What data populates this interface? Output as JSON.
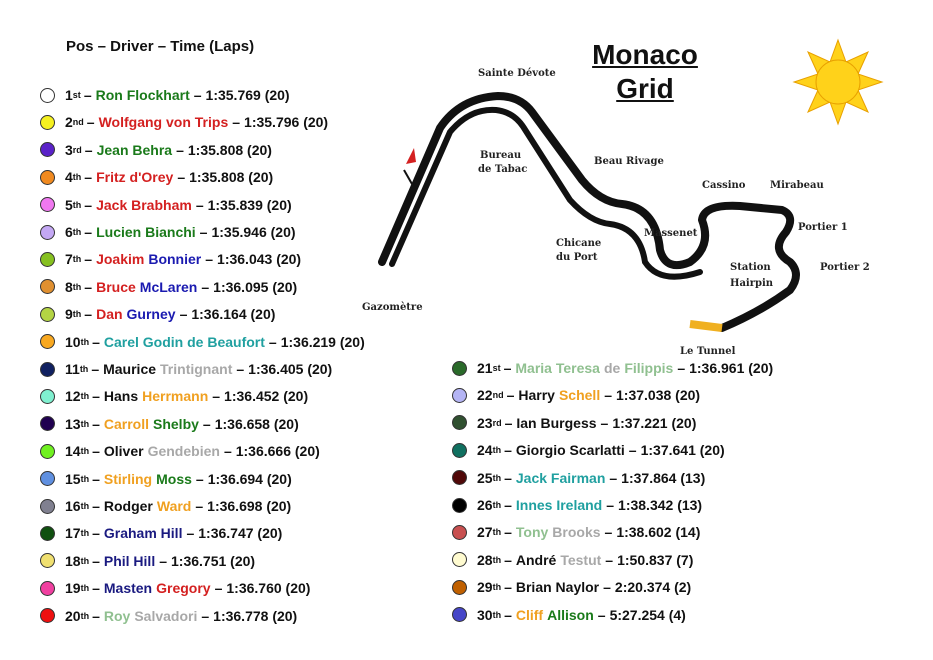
{
  "header": "Pos – Driver – Time (Laps)",
  "title": [
    "Monaco",
    "Grid"
  ],
  "separator": "–",
  "track_labels": [
    "Sainte Dévote",
    "Bureau",
    "de Tabac",
    "Beau Rivage",
    "Cassino",
    "Mirabeau",
    "Portier 1",
    "Portier 2",
    "Station",
    "Hairpin",
    "Massenet",
    "Chicane",
    "du Port",
    "Gazomètre",
    "Le Tunnel"
  ],
  "drivers": [
    {
      "pos": "1",
      "suffix": "st",
      "marker": "#ffffff",
      "name": [
        {
          "text": "Ron Flockhart",
          "color": "#1a7a1a"
        }
      ],
      "time": "1:35.769 (20)"
    },
    {
      "pos": "2",
      "suffix": "nd",
      "marker": "#f5f020",
      "name": [
        {
          "text": "Wolfgang von Trips",
          "color": "#d42020"
        }
      ],
      "time": "1:35.796 (20)"
    },
    {
      "pos": "3",
      "suffix": "rd",
      "marker": "#5a22c8",
      "name": [
        {
          "text": "Jean Behra",
          "color": "#1a7a1a"
        }
      ],
      "time": "1:35.808 (20)"
    },
    {
      "pos": "4",
      "suffix": "th",
      "marker": "#f08a20",
      "name": [
        {
          "text": "Fritz d'Orey",
          "color": "#d42020"
        }
      ],
      "time": "1:35.808 (20)"
    },
    {
      "pos": "5",
      "suffix": "th",
      "marker": "#f078f0",
      "name": [
        {
          "text": "Jack Brabham",
          "color": "#d42020"
        }
      ],
      "time": "1:35.839 (20)"
    },
    {
      "pos": "6",
      "suffix": "th",
      "marker": "#c4a8f4",
      "name": [
        {
          "text": "Lucien Bianchi",
          "color": "#1a7a1a"
        }
      ],
      "time": "1:35.946 (20)"
    },
    {
      "pos": "7",
      "suffix": "th",
      "marker": "#86c020",
      "name": [
        {
          "text": "Joakim",
          "color": "#d42020"
        },
        {
          "text": "Bonnier",
          "color": "#1a1ab0"
        }
      ],
      "time": "1:36.043 (20)"
    },
    {
      "pos": "8",
      "suffix": "th",
      "marker": "#e09030",
      "name": [
        {
          "text": "Bruce",
          "color": "#d42020"
        },
        {
          "text": "McLaren",
          "color": "#1a1ab0"
        }
      ],
      "time": "1:36.095 (20)"
    },
    {
      "pos": "9",
      "suffix": "th",
      "marker": "#b4d444",
      "name": [
        {
          "text": "Dan",
          "color": "#d42020"
        },
        {
          "text": "Gurney",
          "color": "#1a1ab0"
        }
      ],
      "time": "1:36.164 (20)"
    },
    {
      "pos": "10",
      "suffix": "th",
      "marker": "#f8a820",
      "name": [
        {
          "text": "Carel Godin de Beaufort",
          "color": "#20a0a0"
        }
      ],
      "time": "1:36.219 (20)"
    },
    {
      "pos": "11",
      "suffix": "th",
      "marker": "#102060",
      "name": [
        {
          "text": "Maurice",
          "color": "#111111"
        },
        {
          "text": "Trintignant",
          "color": "#a8a8a8"
        }
      ],
      "time": "1:36.405 (20)"
    },
    {
      "pos": "12",
      "suffix": "th",
      "marker": "#80f0d0",
      "name": [
        {
          "text": "Hans",
          "color": "#111111"
        },
        {
          "text": "Herrmann",
          "color": "#f0a020"
        }
      ],
      "time": "1:36.452 (20)"
    },
    {
      "pos": "13",
      "suffix": "th",
      "marker": "#200050",
      "name": [
        {
          "text": "Carroll",
          "color": "#f0a020"
        },
        {
          "text": "Shelby",
          "color": "#1a7a1a"
        }
      ],
      "time": "1:36.658 (20)"
    },
    {
      "pos": "14",
      "suffix": "th",
      "marker": "#70f020",
      "name": [
        {
          "text": "Oliver",
          "color": "#111111"
        },
        {
          "text": "Gendebien",
          "color": "#a8a8a8"
        }
      ],
      "time": "1:36.666 (20)"
    },
    {
      "pos": "15",
      "suffix": "th",
      "marker": "#6090e0",
      "name": [
        {
          "text": "Stirling",
          "color": "#f0a020"
        },
        {
          "text": "Moss",
          "color": "#1a7a1a"
        }
      ],
      "time": "1:36.694 (20)"
    },
    {
      "pos": "16",
      "suffix": "th",
      "marker": "#808090",
      "name": [
        {
          "text": "Rodger",
          "color": "#111111"
        },
        {
          "text": "Ward",
          "color": "#f0a020"
        }
      ],
      "time": "1:36.698 (20)"
    },
    {
      "pos": "17",
      "suffix": "th",
      "marker": "#105010",
      "name": [
        {
          "text": "Graham Hill",
          "color": "#1a1a80"
        }
      ],
      "time": "1:36.747 (20)"
    },
    {
      "pos": "18",
      "suffix": "th",
      "marker": "#f0e070",
      "name": [
        {
          "text": "Phil Hill",
          "color": "#1a1a80"
        }
      ],
      "time": "1:36.751 (20)"
    },
    {
      "pos": "19",
      "suffix": "th",
      "marker": "#f040a0",
      "name": [
        {
          "text": "Masten",
          "color": "#1a1a80"
        },
        {
          "text": "Gregory",
          "color": "#d42020"
        }
      ],
      "time": "1:36.760 (20)"
    },
    {
      "pos": "20",
      "suffix": "th",
      "marker": "#ee1010",
      "name": [
        {
          "text": "Roy",
          "color": "#90c090"
        },
        {
          "text": "Salvadori",
          "color": "#a8a8a8"
        }
      ],
      "time": "1:36.778 (20)"
    },
    {
      "pos": "21",
      "suffix": "st",
      "marker": "#2a6a2a",
      "name": [
        {
          "text": "Maria Teresa",
          "color": "#90c090"
        },
        {
          "text": "de",
          "color": "#a8a8a8"
        },
        {
          "text": "Filippis",
          "color": "#90c090"
        }
      ],
      "time": "1:36.961 (20)"
    },
    {
      "pos": "22",
      "suffix": "nd",
      "marker": "#b4b4f4",
      "name": [
        {
          "text": "Harry",
          "color": "#111111"
        },
        {
          "text": "Schell",
          "color": "#f0a020"
        }
      ],
      "time": "1:37.038 (20)"
    },
    {
      "pos": "23",
      "suffix": "rd",
      "marker": "#305030",
      "name": [
        {
          "text": "Ian Burgess",
          "color": "#111111"
        }
      ],
      "time": "1:37.221 (20)"
    },
    {
      "pos": "24",
      "suffix": "th",
      "marker": "#107060",
      "name": [
        {
          "text": "Giorgio Scarlatti",
          "color": "#111111"
        }
      ],
      "time": "1:37.641 (20)"
    },
    {
      "pos": "25",
      "suffix": "th",
      "marker": "#500808",
      "name": [
        {
          "text": "Jack Fairman",
          "color": "#20a0a0"
        }
      ],
      "time": "1:37.864 (13)"
    },
    {
      "pos": "26",
      "suffix": "th",
      "marker": "#000000",
      "name": [
        {
          "text": "Innes Ireland",
          "color": "#20a0a0"
        }
      ],
      "time": "1:38.342 (13)"
    },
    {
      "pos": "27",
      "suffix": "th",
      "marker": "#c85050",
      "name": [
        {
          "text": "Tony",
          "color": "#90c090"
        },
        {
          "text": "Brooks",
          "color": "#a8a8a8"
        }
      ],
      "time": "1:38.602 (14)"
    },
    {
      "pos": "28",
      "suffix": "th",
      "marker": "#fffbd0",
      "name": [
        {
          "text": "André",
          "color": "#111111"
        },
        {
          "text": "Testut",
          "color": "#a8a8a8"
        }
      ],
      "time": "1:50.837 (7)"
    },
    {
      "pos": "29",
      "suffix": "th",
      "marker": "#c06000",
      "name": [
        {
          "text": "Brian Naylor",
          "color": "#111111"
        }
      ],
      "time": "2:20.374 (2)"
    },
    {
      "pos": "30",
      "suffix": "th",
      "marker": "#4646c8",
      "name": [
        {
          "text": "Cliff",
          "color": "#f0a020"
        },
        {
          "text": "Allison",
          "color": "#1a7a1a"
        }
      ],
      "time": "5:27.254 (4)"
    }
  ]
}
